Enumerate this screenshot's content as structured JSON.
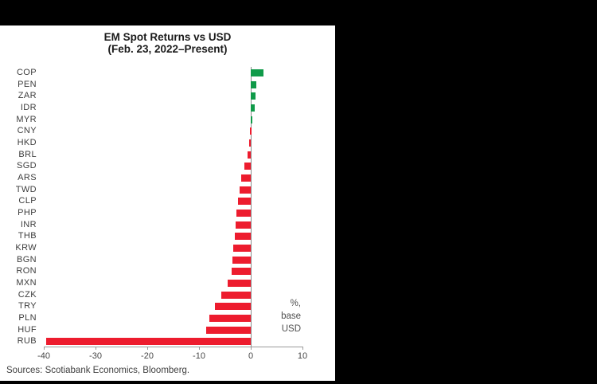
{
  "chart_data": {
    "type": "bar",
    "orientation": "horizontal",
    "title": "EM Spot Returns vs USD",
    "subtitle": "(Feb. 23, 2022–Present)",
    "categories": [
      "COP",
      "PEN",
      "ZAR",
      "IDR",
      "MYR",
      "CNY",
      "HKD",
      "BRL",
      "SGD",
      "ARS",
      "TWD",
      "CLP",
      "PHP",
      "INR",
      "THB",
      "KRW",
      "BGN",
      "RON",
      "MXN",
      "CZK",
      "TRY",
      "PLN",
      "HUF",
      "RUB"
    ],
    "values": [
      2.5,
      1.0,
      0.9,
      0.8,
      0.2,
      -0.1,
      -0.3,
      -0.6,
      -1.3,
      -1.8,
      -2.2,
      -2.4,
      -2.7,
      -2.9,
      -3.1,
      -3.4,
      -3.5,
      -3.7,
      -4.4,
      -5.7,
      -7.0,
      -8.0,
      -8.6,
      -39.5
    ],
    "xlim": [
      -40,
      10
    ],
    "x_ticks": [
      -40,
      -30,
      -20,
      -10,
      0,
      10
    ],
    "annotation_lines": [
      "%,",
      "base",
      "USD"
    ],
    "colors": {
      "positive": "#109a49",
      "negative": "#ed1c2e"
    },
    "grid": false,
    "legend": false
  },
  "footer": {
    "source": "Sources: Scotiabank Economics, Bloomberg."
  }
}
